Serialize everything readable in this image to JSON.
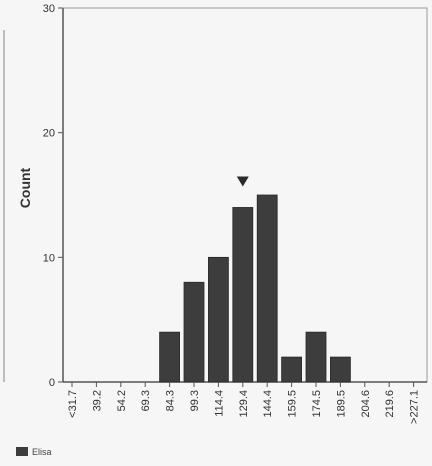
{
  "chart_data": {
    "type": "bar",
    "categories": [
      "<31.7",
      "39.2",
      "54.2",
      "69.3",
      "84.3",
      "99.3",
      "114.4",
      "129.4",
      "144.4",
      "159.5",
      "174.5",
      "189.5",
      "204.6",
      "219.6",
      ">227.1"
    ],
    "values": [
      0,
      0,
      0,
      0,
      4,
      8,
      10,
      14,
      15,
      2,
      4,
      2,
      0,
      0,
      0
    ],
    "xlabel": "",
    "ylabel": "Count",
    "ylim": [
      0,
      30
    ],
    "yticks": [
      0,
      10,
      20,
      30
    ],
    "grid": false,
    "legend": {
      "position": "bottom-left",
      "entries": [
        {
          "name": "Elisa",
          "color": "#3d3d3d"
        }
      ]
    },
    "marker": {
      "type": "down-triangle",
      "at_category": "129.4"
    },
    "colors": {
      "bar": "#3d3d3d",
      "axis": "#555555",
      "text": "#333333"
    }
  }
}
